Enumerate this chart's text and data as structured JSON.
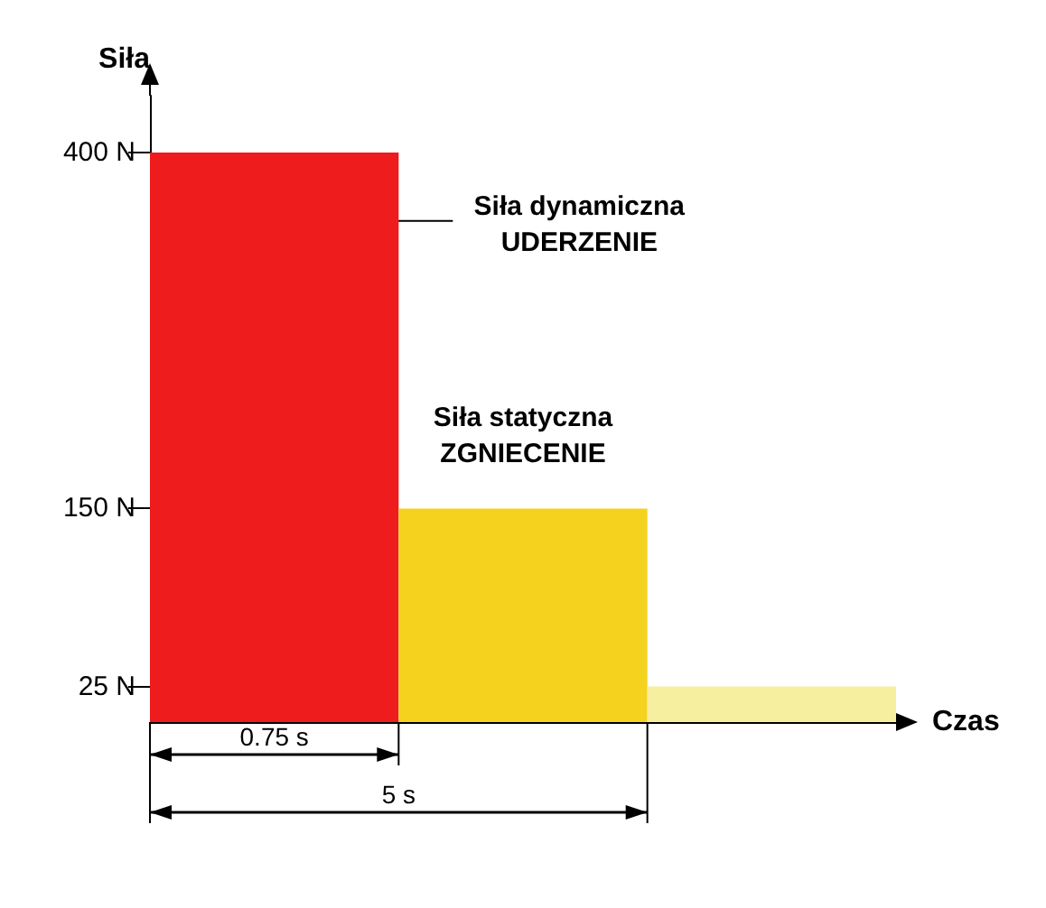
{
  "chart_data": {
    "type": "bar",
    "xlabel": "Czas",
    "ylabel": "Siła",
    "ylim": [
      0,
      440
    ],
    "yticks": [
      {
        "value": 25,
        "label": "25 N"
      },
      {
        "value": 150,
        "label": "150 N"
      },
      {
        "value": 400,
        "label": "400 N"
      }
    ],
    "tick_labels": "y",
    "grid": false,
    "categories": [
      null,
      null,
      null
    ],
    "values": [
      400,
      150,
      25
    ],
    "colors": [
      "#ee1c1c",
      "#f5d21e",
      "#f7efa0"
    ],
    "annotations": [
      "Siła dynamiczna\nUDERZENIE",
      "Siła statyczna\nZGNIECENIE",
      "0.75 s",
      "5 s"
    ]
  }
}
